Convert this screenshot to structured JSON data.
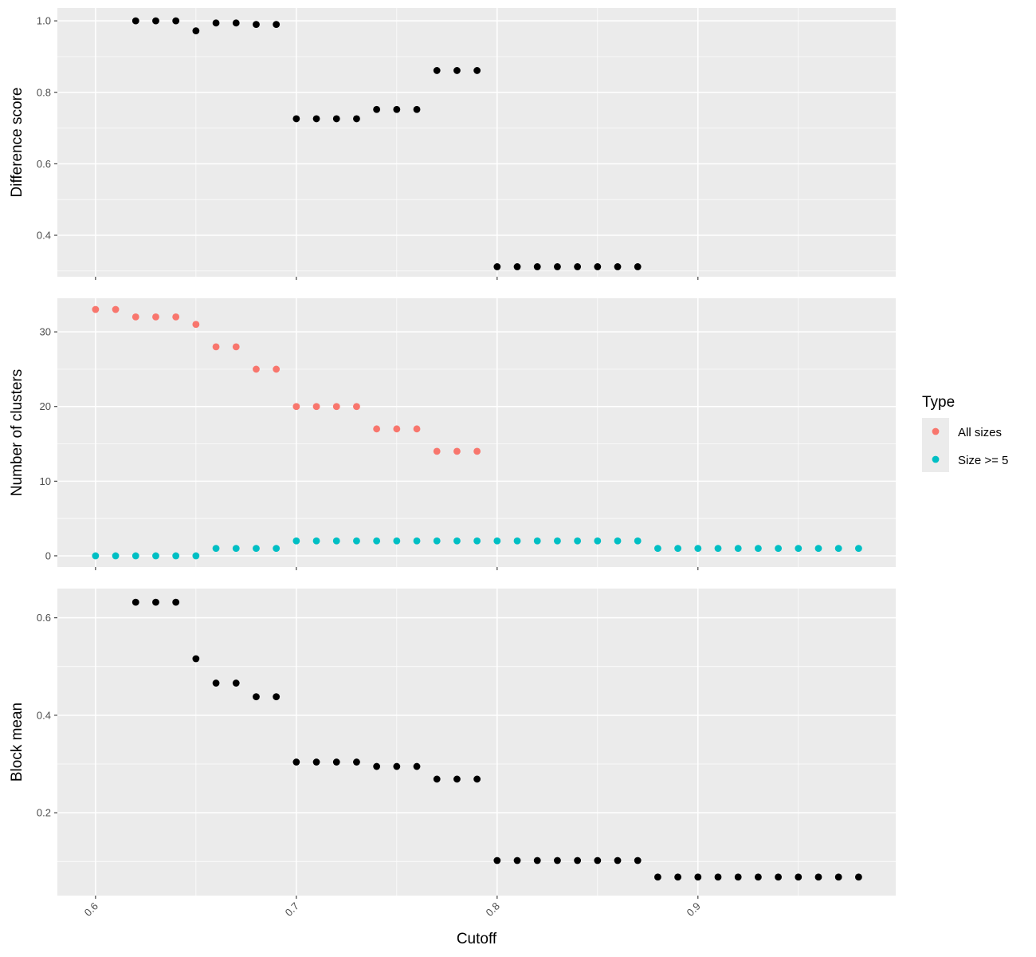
{
  "chart_data": {
    "type": "scatter",
    "xlabel": "Cutoff",
    "xlim": [
      0.581,
      0.9985
    ],
    "x_ticks": [
      0.6,
      0.7,
      0.8,
      0.9
    ],
    "x_tick_labels": [
      "0.6",
      "0.7",
      "0.8",
      "0.9"
    ],
    "grid": true,
    "legend": {
      "title": "Type",
      "position": "right",
      "entries": [
        {
          "label": "All sizes",
          "color": "#F8766D"
        },
        {
          "label": "Size >= 5",
          "color": "#00BFC4"
        }
      ]
    },
    "panels": [
      {
        "ylabel": "Difference score",
        "ylim": [
          0.284,
          1.036
        ],
        "y_ticks": [
          0.4,
          0.6,
          0.8,
          1.0
        ],
        "y_tick_labels": [
          "0.4",
          "0.6",
          "0.8",
          "1.0"
        ],
        "series": [
          {
            "color": "#000000",
            "x": [
              0.62,
              0.63,
              0.64,
              0.65,
              0.66,
              0.67,
              0.68,
              0.69,
              0.7,
              0.71,
              0.72,
              0.73,
              0.74,
              0.75,
              0.76,
              0.77,
              0.78,
              0.79,
              0.8,
              0.81,
              0.82,
              0.83,
              0.84,
              0.85,
              0.86,
              0.87
            ],
            "y": [
              1.0,
              1.0,
              1.0,
              0.972,
              0.994,
              0.994,
              0.99,
              0.99,
              0.726,
              0.726,
              0.726,
              0.726,
              0.752,
              0.752,
              0.752,
              0.861,
              0.861,
              0.861,
              0.312,
              0.312,
              0.312,
              0.312,
              0.312,
              0.312,
              0.312,
              0.312
            ]
          }
        ]
      },
      {
        "ylabel": "Number of clusters",
        "ylim": [
          -1.5,
          34.5
        ],
        "y_ticks": [
          0,
          10,
          20,
          30
        ],
        "y_tick_labels": [
          "0",
          "10",
          "20",
          "30"
        ],
        "series": [
          {
            "name": "All sizes",
            "color": "#F8766D",
            "x": [
              0.6,
              0.61,
              0.62,
              0.63,
              0.64,
              0.65,
              0.66,
              0.67,
              0.68,
              0.69,
              0.7,
              0.71,
              0.72,
              0.73,
              0.74,
              0.75,
              0.76,
              0.77,
              0.78,
              0.79
            ],
            "y": [
              33,
              33,
              32,
              32,
              32,
              31,
              28,
              28,
              25,
              25,
              20,
              20,
              20,
              20,
              17,
              17,
              17,
              14,
              14,
              14
            ]
          },
          {
            "name": "Size >= 5",
            "color": "#00BFC4",
            "x": [
              0.6,
              0.61,
              0.62,
              0.63,
              0.64,
              0.65,
              0.66,
              0.67,
              0.68,
              0.69,
              0.7,
              0.71,
              0.72,
              0.73,
              0.74,
              0.75,
              0.76,
              0.77,
              0.78,
              0.79,
              0.8,
              0.81,
              0.82,
              0.83,
              0.84,
              0.85,
              0.86,
              0.87,
              0.88,
              0.89,
              0.9,
              0.91,
              0.92,
              0.93,
              0.94,
              0.95,
              0.96,
              0.97,
              0.98
            ],
            "y": [
              0,
              0,
              0,
              0,
              0,
              0,
              1,
              1,
              1,
              1,
              2,
              2,
              2,
              2,
              2,
              2,
              2,
              2,
              2,
              2,
              2,
              2,
              2,
              2,
              2,
              2,
              2,
              2,
              1,
              1,
              1,
              1,
              1,
              1,
              1,
              1,
              1,
              1,
              1
            ]
          }
        ]
      },
      {
        "ylabel": "Block mean",
        "ylim": [
          0.03,
          0.66
        ],
        "y_ticks": [
          0.2,
          0.4,
          0.6
        ],
        "y_tick_labels": [
          "0.2",
          "0.4",
          "0.6"
        ],
        "series": [
          {
            "color": "#000000",
            "x": [
              0.62,
              0.63,
              0.64,
              0.65,
              0.66,
              0.67,
              0.68,
              0.69,
              0.7,
              0.71,
              0.72,
              0.73,
              0.74,
              0.75,
              0.76,
              0.77,
              0.78,
              0.79,
              0.8,
              0.81,
              0.82,
              0.83,
              0.84,
              0.85,
              0.86,
              0.87,
              0.88,
              0.89,
              0.9,
              0.91,
              0.92,
              0.93,
              0.94,
              0.95,
              0.96,
              0.97,
              0.98
            ],
            "y": [
              0.632,
              0.632,
              0.632,
              0.516,
              0.466,
              0.466,
              0.438,
              0.438,
              0.304,
              0.304,
              0.304,
              0.304,
              0.295,
              0.295,
              0.295,
              0.269,
              0.269,
              0.269,
              0.102,
              0.102,
              0.102,
              0.102,
              0.102,
              0.102,
              0.102,
              0.102,
              0.068,
              0.068,
              0.068,
              0.068,
              0.068,
              0.068,
              0.068,
              0.068,
              0.068,
              0.068,
              0.068
            ]
          }
        ]
      }
    ]
  }
}
